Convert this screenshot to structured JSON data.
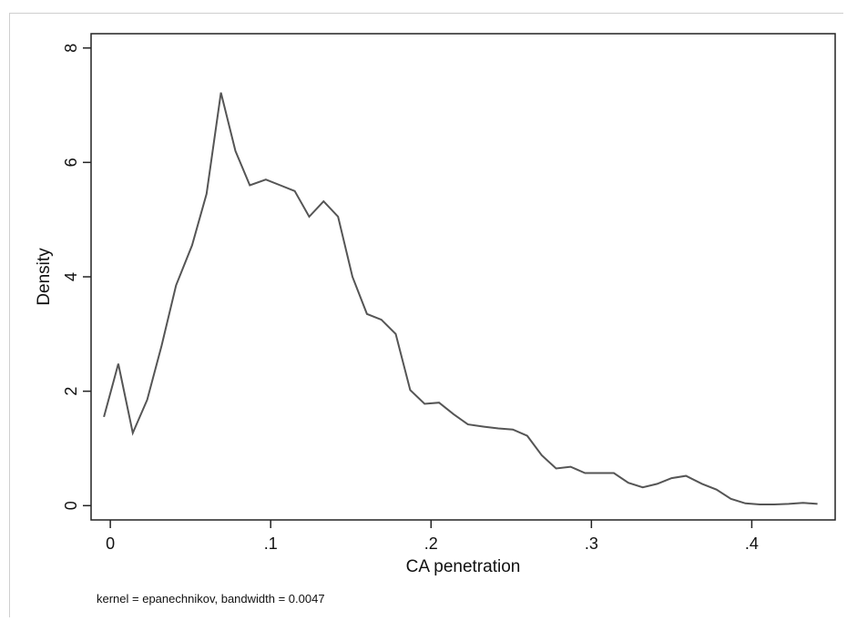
{
  "chart_data": {
    "type": "line",
    "title": "",
    "xlabel": "CA penetration",
    "ylabel": "Density",
    "note": "kernel = epanechnikov, bandwidth = 0.0047",
    "xlim": [
      -0.012,
      0.452
    ],
    "ylim": [
      -0.25,
      8.25
    ],
    "grid": false,
    "x_ticks": [
      {
        "value": 0,
        "label": "0"
      },
      {
        "value": 0.1,
        "label": ".1"
      },
      {
        "value": 0.2,
        "label": ".2"
      },
      {
        "value": 0.3,
        "label": ".3"
      },
      {
        "value": 0.4,
        "label": ".4"
      }
    ],
    "y_ticks": [
      {
        "value": 0,
        "label": "0"
      },
      {
        "value": 2,
        "label": "2"
      },
      {
        "value": 4,
        "label": "4"
      },
      {
        "value": 6,
        "label": "6"
      },
      {
        "value": 8,
        "label": "8"
      }
    ],
    "series": [
      {
        "color": "#555555",
        "x": [
          -0.004,
          0.005,
          0.014,
          0.023,
          0.032,
          0.041,
          0.051,
          0.06,
          0.069,
          0.078,
          0.087,
          0.097,
          0.106,
          0.115,
          0.124,
          0.133,
          0.142,
          0.151,
          0.16,
          0.169,
          0.178,
          0.187,
          0.196,
          0.205,
          0.214,
          0.223,
          0.233,
          0.242,
          0.251,
          0.26,
          0.269,
          0.278,
          0.287,
          0.296,
          0.305,
          0.314,
          0.323,
          0.332,
          0.341,
          0.35,
          0.359,
          0.369,
          0.378,
          0.387,
          0.396,
          0.405,
          0.414,
          0.423,
          0.432,
          0.441
        ],
        "y": [
          1.55,
          2.48,
          1.27,
          1.85,
          2.8,
          3.85,
          4.55,
          5.45,
          7.22,
          6.2,
          5.6,
          5.7,
          5.6,
          5.5,
          5.05,
          5.32,
          5.05,
          4.0,
          3.35,
          3.25,
          3.0,
          2.02,
          1.78,
          1.8,
          1.6,
          1.42,
          1.38,
          1.35,
          1.33,
          1.22,
          0.88,
          0.65,
          0.68,
          0.57,
          0.57,
          0.57,
          0.4,
          0.32,
          0.38,
          0.48,
          0.52,
          0.38,
          0.28,
          0.12,
          0.04,
          0.02,
          0.02,
          0.03,
          0.05,
          0.03
        ]
      }
    ]
  }
}
